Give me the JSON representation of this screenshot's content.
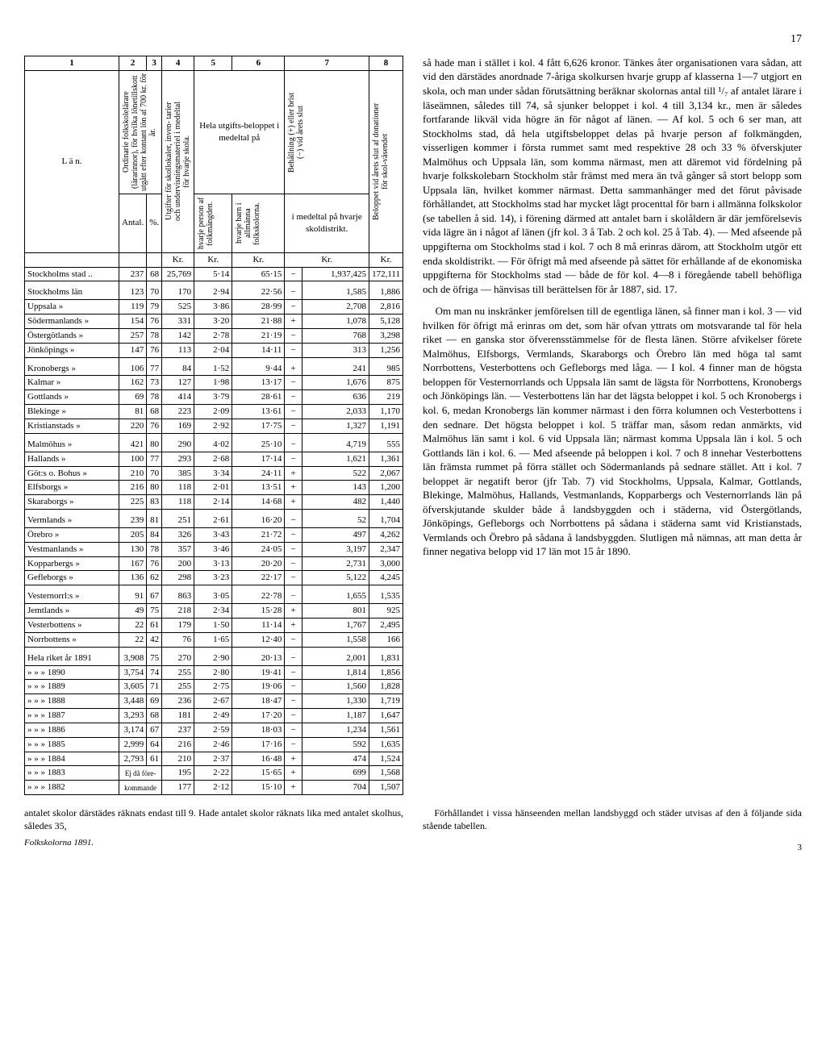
{
  "page_number": "17",
  "table": {
    "col_numbers": [
      "1",
      "2",
      "3",
      "4",
      "5",
      "6",
      "7",
      "8"
    ],
    "header": {
      "col1": "L ä n.",
      "col2": "Ordinarie folkskolelärare (lärarinnor), för hvilka lönetillskott utgått efter kontant lön af 700 kr. för år.",
      "col2a": "Antal.",
      "col2b": "%.",
      "col4": "Utgifter för skollokaler, inven- tarier och undervisningsmateriel i medeltal för hvarje skola.",
      "col56_top": "Hela utgifts-beloppet i medeltal på",
      "col5": "hvarje person af folkmängden.",
      "col6": "hvarje barn i allmänna folkskolorna.",
      "col7_top": "Behållning (+) eller brist (−) vid årets slut",
      "col7_sub": "i medeltal på hvarje skoldistrikt.",
      "col8": "Beloppet vid årets slut af donationer för skol-väsendet",
      "unit_kr": "Kr."
    },
    "rows": [
      {
        "label": "Stockholms stad ..",
        "a": "237",
        "b": "68",
        "c": "25,769",
        "d": "5·14",
        "e": "65·15",
        "sign": "−",
        "f": "1,937,425",
        "g": "172,111"
      },
      {
        "label": "Stockholms       län",
        "a": "123",
        "b": "70",
        "c": "170",
        "d": "2·94",
        "e": "22·56",
        "sign": "−",
        "f": "1,585",
        "g": "1,886",
        "spacer": true
      },
      {
        "label": "Uppsala             »",
        "a": "119",
        "b": "79",
        "c": "525",
        "d": "3·86",
        "e": "28·99",
        "sign": "−",
        "f": "2,708",
        "g": "2,816"
      },
      {
        "label": "Södermanlands  »",
        "a": "154",
        "b": "76",
        "c": "331",
        "d": "3·20",
        "e": "21·88",
        "sign": "+",
        "f": "1,078",
        "g": "5,128"
      },
      {
        "label": "Östergötlands    »",
        "a": "257",
        "b": "78",
        "c": "142",
        "d": "2·78",
        "e": "21·19",
        "sign": "−",
        "f": "768",
        "g": "3,298"
      },
      {
        "label": "Jönköpings        »",
        "a": "147",
        "b": "76",
        "c": "113",
        "d": "2·04",
        "e": "14·11",
        "sign": "−",
        "f": "313",
        "g": "1,256"
      },
      {
        "label": "Kronobergs        »",
        "a": "106",
        "b": "77",
        "c": "84",
        "d": "1·52",
        "e": "9·44",
        "sign": "+",
        "f": "241",
        "g": "985",
        "spacer": true
      },
      {
        "label": "Kalmar              »",
        "a": "162",
        "b": "73",
        "c": "127",
        "d": "1·98",
        "e": "13·17",
        "sign": "−",
        "f": "1,676",
        "g": "875"
      },
      {
        "label": "Gottlands           »",
        "a": "69",
        "b": "78",
        "c": "414",
        "d": "3·79",
        "e": "28·61",
        "sign": "−",
        "f": "636",
        "g": "219"
      },
      {
        "label": "Blekinge            »",
        "a": "81",
        "b": "68",
        "c": "223",
        "d": "2·09",
        "e": "13·61",
        "sign": "−",
        "f": "2,033",
        "g": "1,170"
      },
      {
        "label": "Kristianstads     »",
        "a": "220",
        "b": "76",
        "c": "169",
        "d": "2·92",
        "e": "17·75",
        "sign": "−",
        "f": "1,327",
        "g": "1,191"
      },
      {
        "label": "Malmöhus         »",
        "a": "421",
        "b": "80",
        "c": "290",
        "d": "4·02",
        "e": "25·10",
        "sign": "−",
        "f": "4,719",
        "g": "555",
        "spacer": true
      },
      {
        "label": "Hallands            »",
        "a": "100",
        "b": "77",
        "c": "293",
        "d": "2·68",
        "e": "17·14",
        "sign": "−",
        "f": "1,621",
        "g": "1,361"
      },
      {
        "label": "Göt:s o. Bohus  »",
        "a": "210",
        "b": "70",
        "c": "385",
        "d": "3·34",
        "e": "24·11",
        "sign": "+",
        "f": "522",
        "g": "2,067"
      },
      {
        "label": "Elfsborgs           »",
        "a": "216",
        "b": "80",
        "c": "118",
        "d": "2·01",
        "e": "13·51",
        "sign": "+",
        "f": "143",
        "g": "1,200"
      },
      {
        "label": "Skaraborgs        »",
        "a": "225",
        "b": "83",
        "c": "118",
        "d": "2·14",
        "e": "14·68",
        "sign": "+",
        "f": "482",
        "g": "1,440"
      },
      {
        "label": "Vermlands         »",
        "a": "239",
        "b": "81",
        "c": "251",
        "d": "2·61",
        "e": "16·20",
        "sign": "−",
        "f": "52",
        "g": "1,704",
        "spacer": true
      },
      {
        "label": "Örebro              »",
        "a": "205",
        "b": "84",
        "c": "326",
        "d": "3·43",
        "e": "21·72",
        "sign": "−",
        "f": "497",
        "g": "4,262"
      },
      {
        "label": "Vestmanlands   »",
        "a": "130",
        "b": "78",
        "c": "357",
        "d": "3·46",
        "e": "24·05",
        "sign": "−",
        "f": "3,197",
        "g": "2,347"
      },
      {
        "label": "Kopparbergs     »",
        "a": "167",
        "b": "76",
        "c": "200",
        "d": "3·13",
        "e": "20·20",
        "sign": "−",
        "f": "2,731",
        "g": "3,000"
      },
      {
        "label": "Gefleborgs         »",
        "a": "136",
        "b": "62",
        "c": "298",
        "d": "3·23",
        "e": "22·17",
        "sign": "−",
        "f": "5,122",
        "g": "4,245"
      },
      {
        "label": "Vesternorrl:s     »",
        "a": "91",
        "b": "67",
        "c": "863",
        "d": "3·05",
        "e": "22·78",
        "sign": "−",
        "f": "1,655",
        "g": "1,535",
        "spacer": true
      },
      {
        "label": "Jemtlands          »",
        "a": "49",
        "b": "75",
        "c": "218",
        "d": "2·34",
        "e": "15·28",
        "sign": "+",
        "f": "801",
        "g": "925"
      },
      {
        "label": "Vesterbottens    »",
        "a": "22",
        "b": "61",
        "c": "179",
        "d": "1·50",
        "e": "11·14",
        "sign": "+",
        "f": "1,767",
        "g": "2,495"
      },
      {
        "label": "Norrbottens       »",
        "a": "22",
        "b": "42",
        "c": "76",
        "d": "1·65",
        "e": "12·40",
        "sign": "−",
        "f": "1,558",
        "g": "166"
      },
      {
        "label": "Hela riket år 1891",
        "a": "3,908",
        "b": "75",
        "c": "270",
        "d": "2·90",
        "e": "20·13",
        "sign": "−",
        "f": "2,001",
        "g": "1,831",
        "spacer": true
      },
      {
        "label": "»      »      » 1890",
        "a": "3,754",
        "b": "74",
        "c": "255",
        "d": "2·80",
        "e": "19·41",
        "sign": "−",
        "f": "1,814",
        "g": "1,856"
      },
      {
        "label": "»      »      » 1889",
        "a": "3,605",
        "b": "71",
        "c": "255",
        "d": "2·75",
        "e": "19·06",
        "sign": "−",
        "f": "1,560",
        "g": "1,828"
      },
      {
        "label": "»      »      » 1888",
        "a": "3,448",
        "b": "69",
        "c": "236",
        "d": "2·67",
        "e": "18·47",
        "sign": "−",
        "f": "1,330",
        "g": "1,719"
      },
      {
        "label": "»      »      » 1887",
        "a": "3,293",
        "b": "68",
        "c": "181",
        "d": "2·49",
        "e": "17·20",
        "sign": "−",
        "f": "1,187",
        "g": "1,647"
      },
      {
        "label": "»      »      » 1886",
        "a": "3,174",
        "b": "67",
        "c": "237",
        "d": "2·59",
        "e": "18·03",
        "sign": "−",
        "f": "1,234",
        "g": "1,561"
      },
      {
        "label": "»      »      » 1885",
        "a": "2,999",
        "b": "64",
        "c": "216",
        "d": "2·46",
        "e": "17·16",
        "sign": "−",
        "f": "592",
        "g": "1,635"
      },
      {
        "label": "»      »      » 1884",
        "a": "2,793",
        "b": "61",
        "c": "210",
        "d": "2·37",
        "e": "16·48",
        "sign": "+",
        "f": "474",
        "g": "1,524"
      },
      {
        "label": "»      »      » 1883",
        "a": "",
        "b": "",
        "c": "195",
        "d": "2·22",
        "e": "15·65",
        "sign": "+",
        "f": "699",
        "g": "1,568",
        "note": "Ej då före-"
      },
      {
        "label": "»      »      » 1882",
        "a": "",
        "b": "",
        "c": "177",
        "d": "2·12",
        "e": "15·10",
        "sign": "+",
        "f": "704",
        "g": "1,507",
        "note": "kommande"
      }
    ]
  },
  "paragraphs": [
    "så hade man i stället i kol. 4 fått 6,626 kronor. Tänkes åter organisationen vara sådan, att vid den därstädes anordnade 7-åriga skolkursen hvarje grupp af klasserna 1—7 utgjort en skola, och man under sådan förutsättning beräknar skolornas antal till ¹/₇ af antalet lärare i läseämnen, således till 74, så sjunker beloppet i kol. 4 till 3,134 kr., men är således fortfarande likväl vida högre än för något af länen. — Af kol. 5 och 6 ser man, att Stockholms stad, då hela utgiftsbeloppet delas på hvarje person af folkmängden, visserligen kommer i första rummet samt med respektive 28 och 33 % öfverskjuter Malmöhus och Uppsala län, som komma närmast, men att däremot vid fördelning på hvarje folkskolebarn Stockholm står främst med mera än två gånger så stort belopp som Uppsala län, hvilket kommer närmast. Detta sammanhänger med det förut påvisade förhållandet, att Stockholms stad har mycket lågt procenttal för barn i allmänna folkskolor (se tabellen å sid. 14), i förening därmed att antalet barn i skolåldern är där jemförelsevis vida lägre än i något af länen (jfr kol. 3 å Tab. 2 och kol. 25 å Tab. 4). — Med afseende på uppgifterna om Stockholms stad i kol. 7 och 8 må erinras därom, att Stockholm utgör ett enda skoldistrikt. — För öfrigt må med afseende på sättet för erhållande af de ekonomiska uppgifterna för Stockholms stad — både de för kol. 4—8 i föregående tabell behöfliga och de öfriga — hänvisas till berättelsen för år 1887, sid. 17.",
    "Om man nu inskränker jemförelsen till de egentliga länen, så finner man i kol. 3 — vid hvilken för öfrigt må erinras om det, som här ofvan yttrats om motsvarande tal för hela riket — en ganska stor öfverensstämmelse för de flesta länen. Större afvikelser förete Malmöhus, Elfsborgs, Vermlands, Skaraborgs och Örebro län med höga tal samt Norrbottens, Vesterbottens och Gefleborgs med låga. — I kol. 4 finner man de högsta beloppen för Vesternorrlands och Uppsala län samt de lägsta för Norrbottens, Kronobergs och Jönköpings län. — Vesterbottens län har det lägsta beloppet i kol. 5 och Kronobergs i kol. 6, medan Kronobergs län kommer närmast i den förra kolumnen och Vesterbottens i den sednare. Det högsta beloppet i kol. 5 träffar man, såsom redan anmärkts, vid Malmöhus län samt i kol. 6 vid Uppsala län; närmast komma Uppsala län i kol. 5 och Gottlands län i kol. 6. — Med afseende på beloppen i kol. 7 och 8 innehar Vesterbottens län främsta rummet på förra stället och Södermanlands på sednare stället. Att i kol. 7 beloppet är negatift beror (jfr Tab. 7) vid Stockholms, Uppsala, Kalmar, Gottlands, Blekinge, Malmöhus, Hallands, Vestmanlands, Kopparbergs och Vesternorrlands län på öfverskjutande skulder både å landsbyggden och i städerna, vid Östergötlands, Jönköpings, Gefleborgs och Norrbottens på sådana i städerna samt vid Kristianstads, Vermlands och Örebro på sådana å landsbyggden. Slutligen må nämnas, att man detta år finner negativa belopp vid 17 län mot 15 år 1890."
  ],
  "footer": {
    "left": "antalet skolor därstädes räknats endast till 9. Hade antalet skolor räknats lika med antalet skolhus, således 35,",
    "right": "Förhållandet i vissa hänseenden mellan landsbyggd och städer utvisas af den å följande sida stående tabellen.",
    "source": "Folkskolorna 1891.",
    "folio": "3"
  }
}
